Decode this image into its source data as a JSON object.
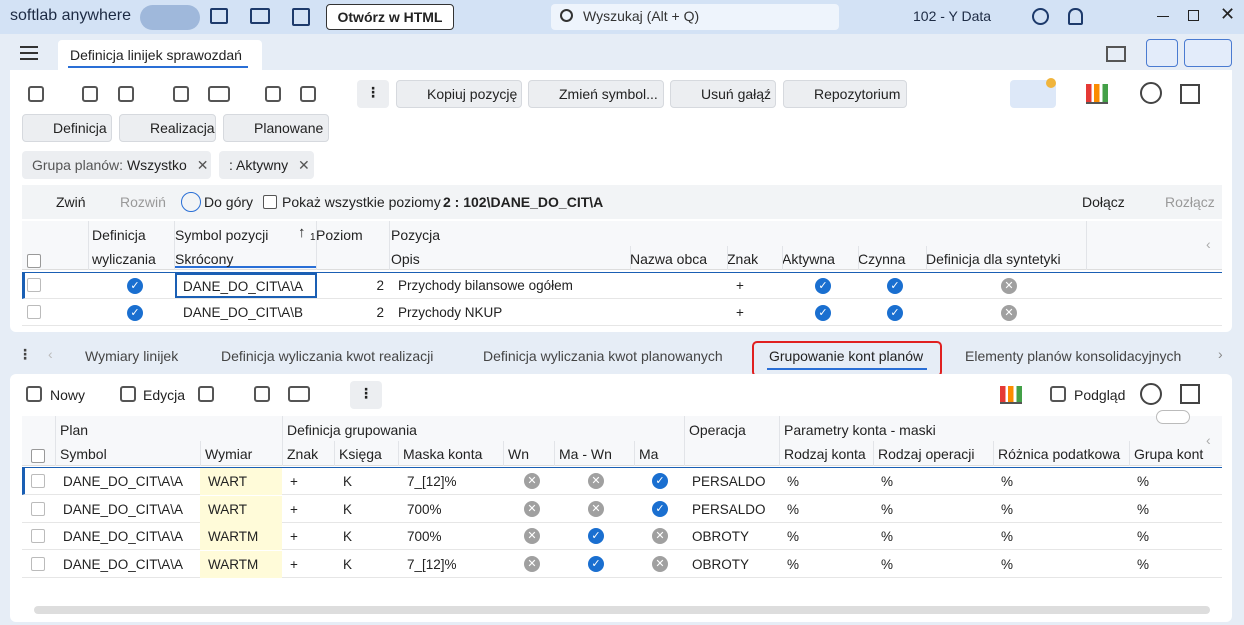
{
  "titlebar": {
    "brand": "softlab anywhere",
    "open_html": "Otwórz w HTML",
    "search": "Wyszukaj (Alt + Q)",
    "company": "102 - Y Data"
  },
  "tab": {
    "title": "Definicja linijek sprawozdań"
  },
  "toolbar": {
    "copy": "Kopiuj pozycję",
    "change": "Zmień symbol...",
    "delete": "Usuń gałąź",
    "repo": "Repozytorium"
  },
  "views": [
    "Definicja",
    "Realizacja",
    "Planowane"
  ],
  "filters": [
    {
      "label": "Grupa planów:",
      "value": "Wszystko"
    },
    {
      "value": ": Aktywny"
    }
  ],
  "tree_toolbar": {
    "collapse": "Zwiń",
    "expand": "Rozwiń",
    "up": "Do góry",
    "show_all": "Pokaż wszystkie poziomy",
    "path": "2 : 102\\DANE_DO_CIT\\A",
    "attach": "Dołącz",
    "detach": "Rozłącz"
  },
  "grid1": {
    "top_headers": [
      "Definicja",
      "Symbol pozycji",
      "Poziom",
      "Pozycja"
    ],
    "sort_index": "1",
    "sub_headers": [
      "wyliczania",
      "Skrócony",
      "Opis",
      "Nazwa obca",
      "Znak",
      "Aktywna",
      "Czynna",
      "Definicja dla syntetyki"
    ],
    "rows": [
      {
        "definicja": true,
        "symbol": "DANE_DO_CIT\\A\\A",
        "poziom": 2,
        "opis": "Przychody bilansowe ogółem",
        "znak": "+",
        "aktywna": true,
        "czynna": true,
        "syntetyka": false
      },
      {
        "definicja": true,
        "symbol": "DANE_DO_CIT\\A\\B",
        "poziom": 2,
        "opis": "Przychody NKUP",
        "znak": "+",
        "aktywna": true,
        "czynna": true,
        "syntetyka": false
      }
    ]
  },
  "bottom_tabs": {
    "items": [
      "Wymiary linijek",
      "Definicja wyliczania  kwot realizacji",
      "Definicja wyliczania kwot planowanych",
      "Grupowanie kont planów",
      "Elementy planów konsolidacyjnych"
    ],
    "active": 3
  },
  "bottom_toolbar": {
    "new": "Nowy",
    "edit": "Edycja",
    "preview": "Podgląd"
  },
  "grid2": {
    "top_headers": [
      "Plan",
      "Definicja grupowania",
      "Operacja",
      "Parametry konta - maski"
    ],
    "sub_headers": [
      "Symbol",
      "Wymiar",
      "Znak",
      "Księga",
      "Maska konta",
      "Wn",
      "Ma - Wn",
      "Ma",
      "Rodzaj konta",
      "Rodzaj operacji",
      "Różnica podatkowa",
      "Grupa kont"
    ],
    "rows": [
      {
        "symbol": "DANE_DO_CIT\\A\\A",
        "wymiar": "WART",
        "znak": "+",
        "ksiega": "K",
        "maska": "7_[12]%",
        "wn": false,
        "ma_wn": false,
        "ma": true,
        "operacja": "PERSALDO",
        "rodzaj_konta": "%",
        "rodzaj_operacji": "%",
        "roznica": "%",
        "grupa": "%"
      },
      {
        "symbol": "DANE_DO_CIT\\A\\A",
        "wymiar": "WART",
        "znak": "+",
        "ksiega": "K",
        "maska": "700%",
        "wn": false,
        "ma_wn": false,
        "ma": true,
        "operacja": "PERSALDO",
        "rodzaj_konta": "%",
        "rodzaj_operacji": "%",
        "roznica": "%",
        "grupa": "%"
      },
      {
        "symbol": "DANE_DO_CIT\\A\\A",
        "wymiar": "WARTM",
        "znak": "+",
        "ksiega": "K",
        "maska": "700%",
        "wn": false,
        "ma_wn": true,
        "ma": false,
        "operacja": "OBROTY",
        "rodzaj_konta": "%",
        "rodzaj_operacji": "%",
        "roznica": "%",
        "grupa": "%"
      },
      {
        "symbol": "DANE_DO_CIT\\A\\A",
        "wymiar": "WARTM",
        "znak": "+",
        "ksiega": "K",
        "maska": "7_[12]%",
        "wn": false,
        "ma_wn": true,
        "ma": false,
        "operacja": "OBROTY",
        "rodzaj_konta": "%",
        "rodzaj_operacji": "%",
        "roznica": "%",
        "grupa": "%"
      }
    ]
  }
}
